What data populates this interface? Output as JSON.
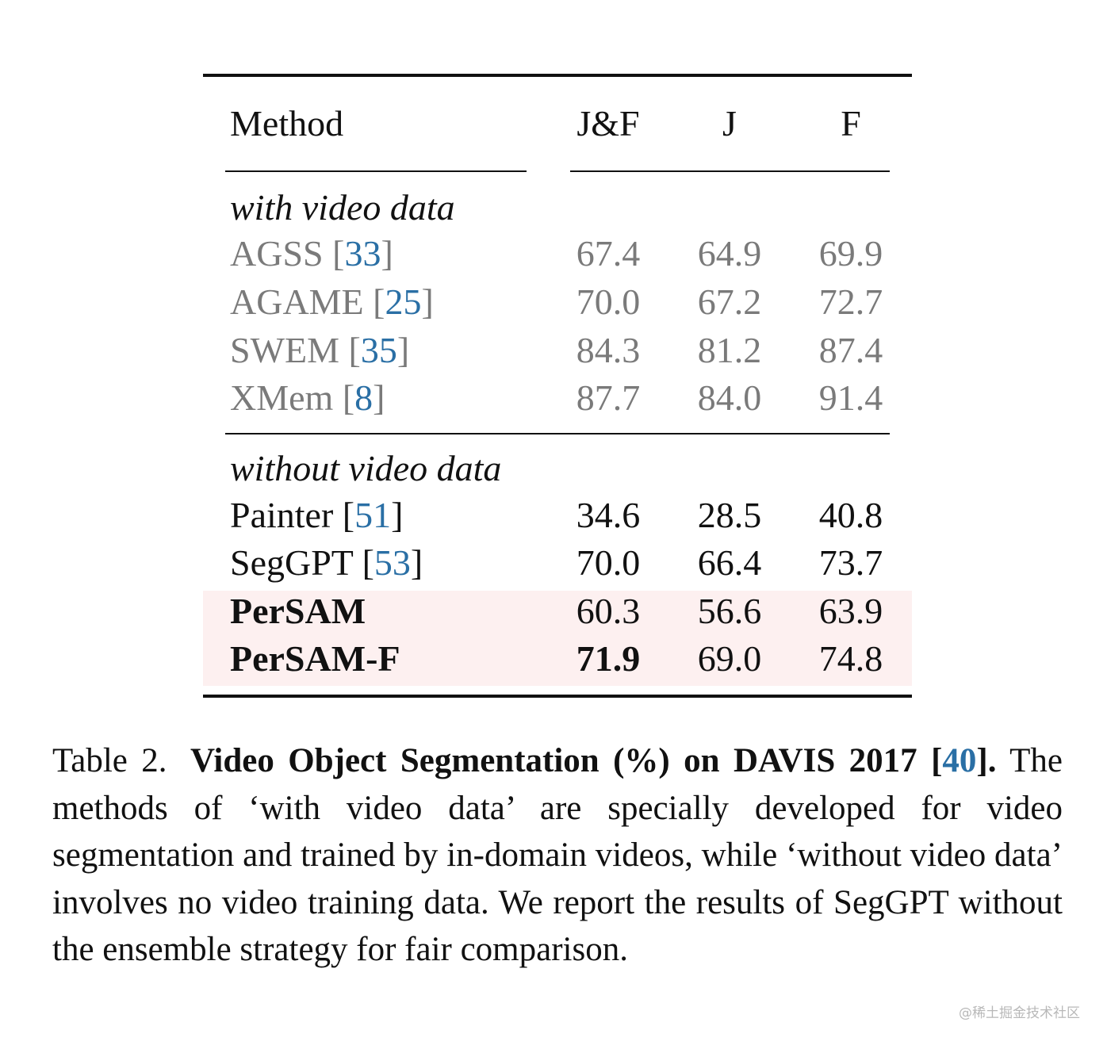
{
  "table": {
    "headers": {
      "method": "Method",
      "jf": "J&F",
      "j": "J",
      "f": "F"
    },
    "groups": [
      {
        "label": "with video data",
        "rows": [
          {
            "method": "AGSS",
            "ref": "33",
            "jf": "67.4",
            "j": "64.9",
            "f": "69.9"
          },
          {
            "method": "AGAME",
            "ref": "25",
            "jf": "70.0",
            "j": "67.2",
            "f": "72.7"
          },
          {
            "method": "SWEM",
            "ref": "35",
            "jf": "84.3",
            "j": "81.2",
            "f": "87.4"
          },
          {
            "method": "XMem",
            "ref": "8",
            "jf": "87.7",
            "j": "84.0",
            "f": "91.4"
          }
        ]
      },
      {
        "label": "without video data",
        "rows": [
          {
            "method": "Painter",
            "ref": "51",
            "jf": "34.6",
            "j": "28.5",
            "f": "40.8"
          },
          {
            "method": "SegGPT",
            "ref": "53",
            "jf": "70.0",
            "j": "66.4",
            "f": "73.7"
          },
          {
            "method": "PerSAM",
            "jf": "60.3",
            "j": "56.6",
            "f": "63.9"
          },
          {
            "method": "PerSAM-F",
            "jf": "71.9",
            "j": "69.0",
            "f": "74.8"
          }
        ]
      }
    ]
  },
  "caption": {
    "label": "Table 2.",
    "title": "Video Object Segmentation (%) on DAVIS 2017",
    "title_ref": "40",
    "body": "The methods of ‘with video data’ are specially developed for video segmentation and trained by in-domain videos, while ‘without video data’ involves no video training data. We report the results of SegGPT without the ensemble strategy for fair comparison."
  },
  "watermark": "@稀土掘金技术社区",
  "colors": {
    "text": "#111111",
    "gray_text": "#7a7a7a",
    "ref_link": "#2a6fa5",
    "highlight_bg": "#fdf0f0"
  }
}
